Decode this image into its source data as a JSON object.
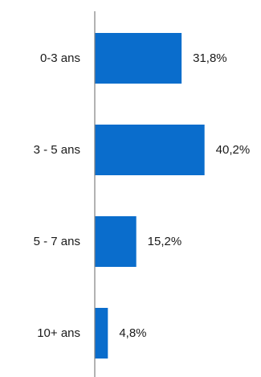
{
  "chart_data": {
    "type": "bar",
    "orientation": "horizontal",
    "categories": [
      "0-3 ans",
      "3 - 5 ans",
      "5 - 7 ans",
      "10+ ans"
    ],
    "values": [
      31.8,
      40.2,
      15.2,
      4.8
    ],
    "value_labels": [
      "31,8%",
      "40,2%",
      "15,2%",
      "4,8%"
    ],
    "unit": "%",
    "xlim": [
      0,
      100
    ],
    "grid": false,
    "legend": "none",
    "colors": {
      "bar": "#0a6dcc",
      "axis": "#808080",
      "text": "#1a1a1a"
    }
  }
}
